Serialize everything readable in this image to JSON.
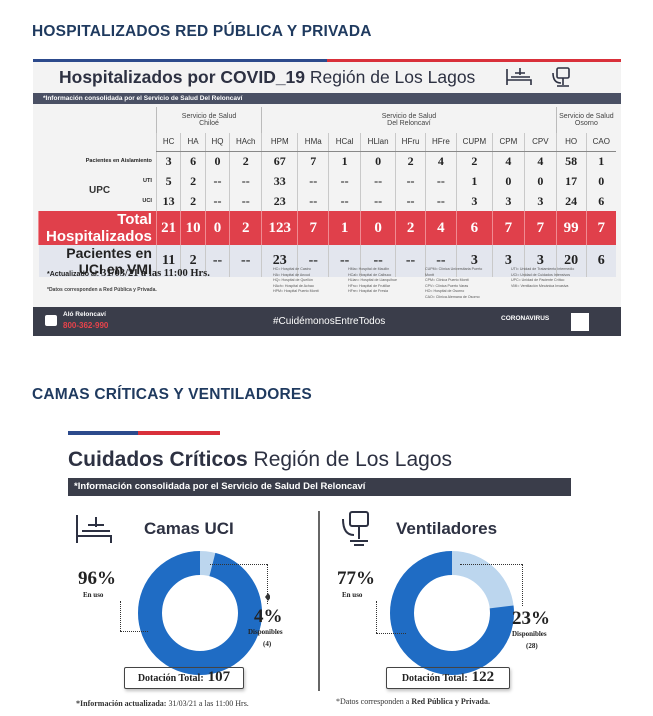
{
  "section1": {
    "heading": "HOSPITALIZADOS RED PÚBLICA Y PRIVADA"
  },
  "info1": {
    "title_bold": "Hospitalizados por COVID_19",
    "title_region": " Región de Los Lagos",
    "subheader": "*Información consolidada por el Servicio de Salud Del Reloncaví",
    "services": [
      {
        "line1": "Servicio de Salud",
        "line2": "Chiloé"
      },
      {
        "line1": "Servicio de Salud",
        "line2": "Del Reloncaví"
      },
      {
        "line1": "Servicio de Salud",
        "line2": "Osorno"
      }
    ],
    "columns": [
      "HC",
      "HA",
      "HQ",
      "HAch",
      "HPM",
      "HMa",
      "HCal",
      "HLlan",
      "HFru",
      "HFre",
      "CUPM",
      "CPM",
      "CPV",
      "HO",
      "CAO"
    ],
    "upc_label": "UPC",
    "rows": [
      {
        "label": "Pacientes en Aislamiento",
        "values": [
          "3",
          "6",
          "0",
          "2",
          "67",
          "7",
          "1",
          "0",
          "2",
          "4",
          "2",
          "4",
          "4",
          "58",
          "1"
        ]
      },
      {
        "label": "UTI",
        "values": [
          "5",
          "2",
          "--",
          "--",
          "33",
          "--",
          "--",
          "--",
          "--",
          "--",
          "1",
          "0",
          "0",
          "17",
          "0"
        ]
      },
      {
        "label": "UCI",
        "values": [
          "13",
          "2",
          "--",
          "--",
          "23",
          "--",
          "--",
          "--",
          "--",
          "--",
          "3",
          "3",
          "3",
          "24",
          "6"
        ]
      },
      {
        "label": "Total Hospitalizados",
        "values": [
          "21",
          "10",
          "0",
          "2",
          "123",
          "7",
          "1",
          "0",
          "2",
          "4",
          "6",
          "7",
          "7",
          "99",
          "7"
        ]
      },
      {
        "label": "Pacientes en UCI en VMI",
        "values": [
          "11",
          "2",
          "--",
          "--",
          "23",
          "--",
          "--",
          "--",
          "--",
          "--",
          "3",
          "3",
          "3",
          "20",
          "6"
        ]
      }
    ],
    "updated_label": "*Actualizado al:",
    "updated_value": "31/03/21 a las 11:00 Hrs.",
    "datos_note": "*Datos corresponden a Red Pública y Privada.",
    "abbr_blocks": [
      [
        "HC= Hospital de Castro",
        "HA= Hospital de Ancud",
        "HQ= Hospital de Quellón",
        "HAch= Hospital de Achao",
        "HPM= Hospital Puerto Montt"
      ],
      [
        "HMa= Hospital de Maullín",
        "HCal= Hospital de Calbuco",
        "HLlan= Hospital de Llanquihue",
        "HFru= Hospital de Frutillar",
        "HFre= Hospital de Fresia"
      ],
      [
        "CUPM= Clínica Universitaria Puerto Montt",
        "CPM= Clínica Puerto Montt",
        "CPV= Clínica Puerto Varas",
        "HO= Hospital de Osorno",
        "CAO= Clínica Alemana de Osorno"
      ],
      [
        "UTI= Unidad de Tratamiento Intermedio",
        "UCI= Unidad de Cuidados Intensivos",
        "UPC= Unidad de Paciente Crítico",
        "VMI= Ventilación Mecánica Invasiva"
      ]
    ],
    "footer": {
      "alo_label": "Aló Reloncaví",
      "alo_number": "800-362-990",
      "hashtag": "#CuidémonosEntreTodos",
      "corona": "CORONAVIRUS"
    }
  },
  "section2": {
    "heading": "CAMAS CRÍTICAS Y VENTILADORES"
  },
  "info2": {
    "title_bold": "Cuidados Críticos",
    "title_region": " Región de Los Lagos",
    "subheader": "*Información consolidada por el Servicio de Salud Del Reloncaví",
    "camas": {
      "title": "Camas UCI",
      "in_use_pct": "96%",
      "in_use_label": "En uso",
      "avail_pct": "4%",
      "avail_label": "Disponibles",
      "avail_count": "(4)",
      "in_use_fraction": 0.96,
      "dotacion_label": "Dotación Total:",
      "dotacion_value": "107"
    },
    "ventiladores": {
      "title": "Ventiladores",
      "in_use_pct": "77%",
      "in_use_label": "En uso",
      "avail_pct": "23%",
      "avail_label": "Disponibles",
      "avail_count": "(28)",
      "in_use_fraction": 0.77,
      "dotacion_label": "Dotación Total:",
      "dotacion_value": "122"
    },
    "foot_left_prefix": "*Información actualizada:",
    "foot_left_value": " 31/03/21 a las 11:00 Hrs.",
    "foot_right_prefix": "*Datos corresponden a ",
    "foot_right_bold": "Red Pública y Privada."
  },
  "colors": {
    "donut_main": "#1f6cc4",
    "donut_light": "#bcd6ee",
    "total_row": "#e0404b",
    "dark_bar": "#3a3d4a"
  }
}
